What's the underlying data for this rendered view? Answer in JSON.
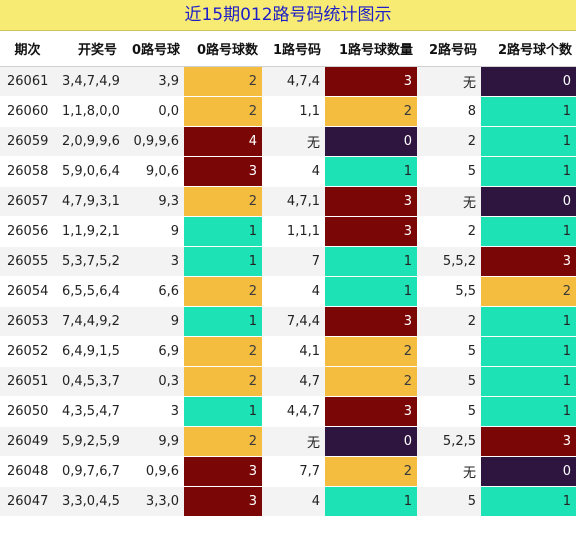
{
  "title": "近15期012路号码统计图示",
  "colors": {
    "count_0": "#2e1540",
    "count_1": "#1de2b5",
    "count_2": "#f5bd40",
    "count_3": "#7a0606",
    "count_4": "#7a0606",
    "title_bg": "#f7eb74",
    "title_fg": "#1e1ec8"
  },
  "chart_data": {
    "type": "table",
    "title": "近15期012路号码统计图示",
    "columns": [
      "期次",
      "开奖号",
      "0路号球",
      "0路号球数",
      "1路号码",
      "1路号球数量",
      "2路号码",
      "2路号球个数"
    ],
    "rows": [
      [
        "26061",
        "3,4,7,4,9",
        "3,9",
        "2",
        "4,7,4",
        "3",
        "无",
        "0"
      ],
      [
        "26060",
        "1,1,8,0,0",
        "0,0",
        "2",
        "1,1",
        "2",
        "8",
        "1"
      ],
      [
        "26059",
        "2,0,9,9,6",
        "0,9,9,6",
        "4",
        "无",
        "0",
        "2",
        "1"
      ],
      [
        "26058",
        "5,9,0,6,4",
        "9,0,6",
        "3",
        "4",
        "1",
        "5",
        "1"
      ],
      [
        "26057",
        "4,7,9,3,1",
        "9,3",
        "2",
        "4,7,1",
        "3",
        "无",
        "0"
      ],
      [
        "26056",
        "1,1,9,2,1",
        "9",
        "1",
        "1,1,1",
        "3",
        "2",
        "1"
      ],
      [
        "26055",
        "5,3,7,5,2",
        "3",
        "1",
        "7",
        "1",
        "5,5,2",
        "3"
      ],
      [
        "26054",
        "6,5,5,6,4",
        "6,6",
        "2",
        "4",
        "1",
        "5,5",
        "2"
      ],
      [
        "26053",
        "7,4,4,9,2",
        "9",
        "1",
        "7,4,4",
        "3",
        "2",
        "1"
      ],
      [
        "26052",
        "6,4,9,1,5",
        "6,9",
        "2",
        "4,1",
        "2",
        "5",
        "1"
      ],
      [
        "26051",
        "0,4,5,3,7",
        "0,3",
        "2",
        "4,7",
        "2",
        "5",
        "1"
      ],
      [
        "26050",
        "4,3,5,4,7",
        "3",
        "1",
        "4,4,7",
        "3",
        "5",
        "1"
      ],
      [
        "26049",
        "5,9,2,5,9",
        "9,9",
        "2",
        "无",
        "0",
        "5,2,5",
        "3"
      ],
      [
        "26048",
        "0,9,7,6,7",
        "0,9,6",
        "3",
        "7,7",
        "2",
        "无",
        "0"
      ],
      [
        "26047",
        "3,3,0,4,5",
        "3,3,0",
        "3",
        "4",
        "1",
        "5",
        "1"
      ]
    ]
  }
}
